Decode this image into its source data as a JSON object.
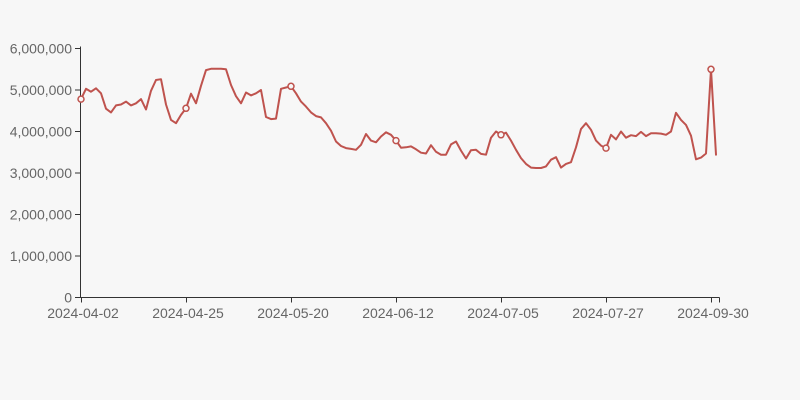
{
  "page": {
    "background": "#f7f7f7"
  },
  "colors": {
    "axis": "#333333",
    "label": "#666666",
    "line": "#bf534e",
    "marker_fill": "#f7f7f7"
  },
  "chart_data": {
    "type": "line",
    "title": "",
    "xlabel": "",
    "ylabel": "",
    "grid": false,
    "legend": false,
    "x_axis": {
      "tick_labels": [
        "2024-04-02",
        "2024-04-25",
        "2024-05-20",
        "2024-06-12",
        "2024-07-05",
        "2024-07-27",
        "2024-09-30"
      ],
      "tick_indices": [
        0,
        21,
        42,
        63,
        84,
        105,
        126
      ]
    },
    "y_axis": {
      "min": 0,
      "max": 6000000,
      "tick_values": [
        0,
        1000000,
        2000000,
        3000000,
        4000000,
        5000000,
        6000000
      ],
      "tick_labels": [
        "0",
        "1,000,000",
        "2,000,000",
        "3,000,000",
        "4,000,000",
        "5,000,000",
        "6,000,000"
      ]
    },
    "series": [
      {
        "name": "series-1",
        "color": "#bf534e",
        "marker": "empty-circle",
        "marker_indices": [
          0,
          21,
          42,
          63,
          84,
          105,
          126
        ],
        "marker_values": [
          4780000,
          4560000,
          5090000,
          3780000,
          3920000,
          3600000,
          5500000
        ],
        "values": [
          4780000,
          5030000,
          4960000,
          5040000,
          4920000,
          4550000,
          4460000,
          4630000,
          4650000,
          4720000,
          4630000,
          4680000,
          4780000,
          4530000,
          4980000,
          5240000,
          5260000,
          4650000,
          4280000,
          4200000,
          4400000,
          4560000,
          4910000,
          4680000,
          5100000,
          5480000,
          5510000,
          5510000,
          5510000,
          5500000,
          5120000,
          4850000,
          4680000,
          4940000,
          4870000,
          4920000,
          5000000,
          4350000,
          4300000,
          4310000,
          5030000,
          5060000,
          5090000,
          4920000,
          4720000,
          4600000,
          4460000,
          4370000,
          4340000,
          4200000,
          4020000,
          3760000,
          3650000,
          3600000,
          3580000,
          3560000,
          3680000,
          3940000,
          3780000,
          3740000,
          3880000,
          3980000,
          3920000,
          3780000,
          3610000,
          3620000,
          3640000,
          3570000,
          3490000,
          3470000,
          3670000,
          3510000,
          3440000,
          3440000,
          3690000,
          3760000,
          3540000,
          3350000,
          3550000,
          3560000,
          3460000,
          3440000,
          3850000,
          4000000,
          3920000,
          3970000,
          3780000,
          3560000,
          3360000,
          3220000,
          3130000,
          3120000,
          3120000,
          3160000,
          3320000,
          3380000,
          3130000,
          3220000,
          3260000,
          3620000,
          4060000,
          4200000,
          4040000,
          3780000,
          3660000,
          3600000,
          3920000,
          3810000,
          4000000,
          3850000,
          3910000,
          3890000,
          3990000,
          3890000,
          3960000,
          3960000,
          3950000,
          3920000,
          4000000,
          4450000,
          4280000,
          4160000,
          3900000,
          3330000,
          3370000,
          3470000,
          5500000,
          3440000
        ]
      }
    ]
  }
}
